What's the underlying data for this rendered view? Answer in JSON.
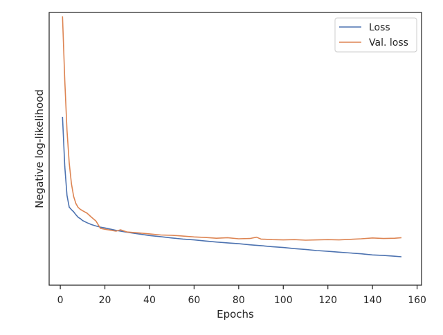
{
  "chart_data": {
    "type": "line",
    "title": "",
    "xlabel": "Epochs",
    "ylabel": "Negative log-likelihood",
    "xlim": [
      -5,
      162
    ],
    "ylim": [
      0,
      1
    ],
    "x_ticks": [
      0,
      20,
      40,
      60,
      80,
      100,
      120,
      140,
      160
    ],
    "y_ticks_shown": false,
    "grid": false,
    "legend_position": "top-right",
    "series": [
      {
        "name": "Loss",
        "color": "#4c72b0",
        "points": [
          [
            1,
            0.617
          ],
          [
            2,
            0.435
          ],
          [
            3,
            0.329
          ],
          [
            4,
            0.286
          ],
          [
            5,
            0.277
          ],
          [
            6,
            0.269
          ],
          [
            7,
            0.258
          ],
          [
            8,
            0.249
          ],
          [
            9,
            0.244
          ],
          [
            10,
            0.237
          ],
          [
            12,
            0.229
          ],
          [
            14,
            0.222
          ],
          [
            16,
            0.217
          ],
          [
            18,
            0.213
          ],
          [
            20,
            0.21
          ],
          [
            25,
            0.201
          ],
          [
            30,
            0.194
          ],
          [
            35,
            0.188
          ],
          [
            40,
            0.182
          ],
          [
            45,
            0.178
          ],
          [
            50,
            0.173
          ],
          [
            55,
            0.169
          ],
          [
            60,
            0.166
          ],
          [
            65,
            0.162
          ],
          [
            70,
            0.158
          ],
          [
            75,
            0.155
          ],
          [
            80,
            0.152
          ],
          [
            85,
            0.148
          ],
          [
            90,
            0.145
          ],
          [
            95,
            0.141
          ],
          [
            100,
            0.138
          ],
          [
            105,
            0.134
          ],
          [
            110,
            0.131
          ],
          [
            115,
            0.127
          ],
          [
            120,
            0.124
          ],
          [
            125,
            0.121
          ],
          [
            130,
            0.118
          ],
          [
            135,
            0.115
          ],
          [
            140,
            0.111
          ],
          [
            145,
            0.109
          ],
          [
            150,
            0.106
          ],
          [
            153,
            0.104
          ]
        ]
      },
      {
        "name": "Val. loss",
        "color": "#dd8452",
        "points": [
          [
            1,
            0.986
          ],
          [
            2,
            0.75
          ],
          [
            3,
            0.567
          ],
          [
            4,
            0.448
          ],
          [
            5,
            0.372
          ],
          [
            6,
            0.325
          ],
          [
            7,
            0.299
          ],
          [
            8,
            0.285
          ],
          [
            9,
            0.278
          ],
          [
            10,
            0.273
          ],
          [
            12,
            0.264
          ],
          [
            14,
            0.249
          ],
          [
            16,
            0.235
          ],
          [
            18,
            0.208
          ],
          [
            20,
            0.205
          ],
          [
            25,
            0.198
          ],
          [
            27,
            0.203
          ],
          [
            30,
            0.195
          ],
          [
            35,
            0.192
          ],
          [
            40,
            0.188
          ],
          [
            45,
            0.184
          ],
          [
            50,
            0.183
          ],
          [
            55,
            0.18
          ],
          [
            60,
            0.177
          ],
          [
            65,
            0.175
          ],
          [
            70,
            0.172
          ],
          [
            75,
            0.174
          ],
          [
            80,
            0.17
          ],
          [
            85,
            0.171
          ],
          [
            88,
            0.176
          ],
          [
            90,
            0.169
          ],
          [
            95,
            0.167
          ],
          [
            100,
            0.166
          ],
          [
            105,
            0.167
          ],
          [
            110,
            0.165
          ],
          [
            115,
            0.166
          ],
          [
            120,
            0.167
          ],
          [
            125,
            0.166
          ],
          [
            130,
            0.168
          ],
          [
            135,
            0.17
          ],
          [
            140,
            0.173
          ],
          [
            145,
            0.171
          ],
          [
            150,
            0.172
          ],
          [
            153,
            0.174
          ]
        ]
      }
    ]
  }
}
